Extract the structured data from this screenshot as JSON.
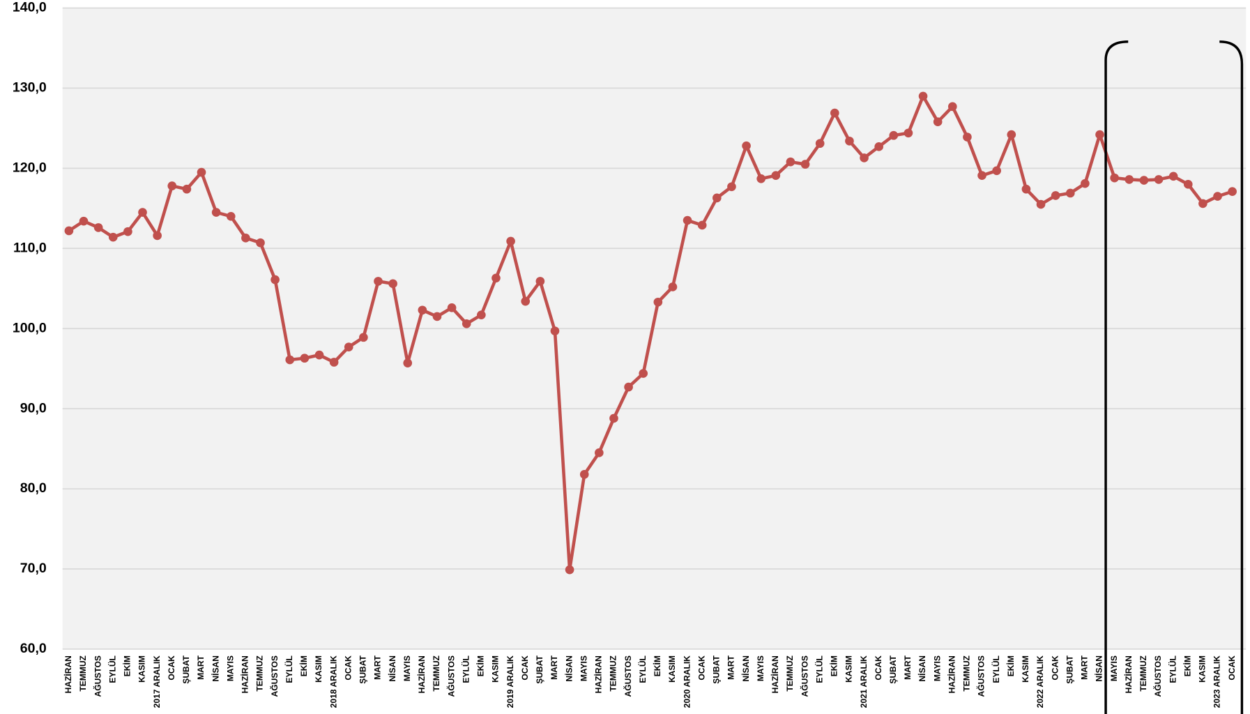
{
  "chart_data": {
    "type": "line",
    "color": "#c0504d",
    "grid": true,
    "ylim": [
      60,
      140
    ],
    "yticks": [
      {
        "value": 60,
        "label": "60,0"
      },
      {
        "value": 70,
        "label": "70,0"
      },
      {
        "value": 80,
        "label": "80,0"
      },
      {
        "value": 90,
        "label": "90,0"
      },
      {
        "value": 100,
        "label": "100,0"
      },
      {
        "value": 110,
        "label": "110,0"
      },
      {
        "value": 120,
        "label": "120,0"
      },
      {
        "value": 130,
        "label": "130,0"
      },
      {
        "value": 140,
        "label": "140,0"
      }
    ],
    "categories": [
      "HAZİRAN",
      "TEMMUZ",
      "AĞUSTOS",
      "EYLÜL",
      "EKİM",
      "KASIM",
      "2017 ARALIK",
      "OCAK",
      "ŞUBAT",
      "MART",
      "NİSAN",
      "MAYIS",
      "HAZİRAN",
      "TEMMUZ",
      "AĞUSTOS",
      "EYLÜL",
      "EKİM",
      "KASIM",
      "2018 ARALIK",
      "OCAK",
      "ŞUBAT",
      "MART",
      "NİSAN",
      "MAYIS",
      "HAZİRAN",
      "TEMMUZ",
      "AĞUSTOS",
      "EYLÜL",
      "EKİM",
      "KASIM",
      "2019 ARALIK",
      "OCAK",
      "ŞUBAT",
      "MART",
      "NİSAN",
      "MAYIS",
      "HAZİRAN",
      "TEMMUZ",
      "AĞUSTOS",
      "EYLÜL",
      "EKİM",
      "KASIM",
      "2020 ARALIK",
      "OCAK",
      "ŞUBAT",
      "MART",
      "NİSAN",
      "MAYIS",
      "HAZİRAN",
      "TEMMUZ",
      "AĞUSTOS",
      "EYLÜL",
      "EKİM",
      "KASIM",
      "2021 ARALIK",
      "OCAK",
      "ŞUBAT",
      "MART",
      "NİSAN",
      "MAYIS",
      "HAZİRAN",
      "TEMMUZ",
      "AĞUSTOS",
      "EYLÜL",
      "EKİM",
      "KASIM",
      "2022 ARALIK",
      "OCAK",
      "ŞUBAT",
      "MART",
      "NİSAN",
      "MAYIS",
      "HAZİRAN",
      "TEMMUZ",
      "AĞUSTOS",
      "EYLÜL",
      "EKİM",
      "KASIM",
      "2023 ARALIK",
      "OCAK"
    ],
    "values": [
      112.2,
      113.4,
      112.6,
      111.4,
      112.1,
      114.5,
      111.6,
      117.8,
      117.4,
      119.5,
      114.5,
      114.0,
      111.3,
      110.7,
      106.1,
      96.1,
      96.3,
      96.7,
      95.8,
      97.7,
      98.9,
      105.9,
      105.6,
      95.7,
      102.3,
      101.5,
      102.6,
      100.6,
      101.7,
      106.3,
      110.9,
      103.4,
      105.9,
      99.7,
      69.9,
      81.8,
      84.5,
      88.8,
      92.7,
      94.4,
      103.3,
      105.2,
      113.5,
      112.9,
      116.3,
      117.7,
      122.8,
      118.7,
      119.1,
      120.8,
      120.5,
      123.1,
      126.9,
      123.4,
      121.3,
      122.7,
      124.1,
      124.4,
      129.0,
      125.8,
      127.7,
      123.9,
      119.1,
      119.7,
      124.2,
      117.4,
      115.5,
      116.6,
      116.9,
      118.1,
      124.2,
      118.8,
      118.6,
      118.5,
      118.6,
      119.0,
      118.0,
      115.6,
      116.5,
      117.1
    ]
  }
}
